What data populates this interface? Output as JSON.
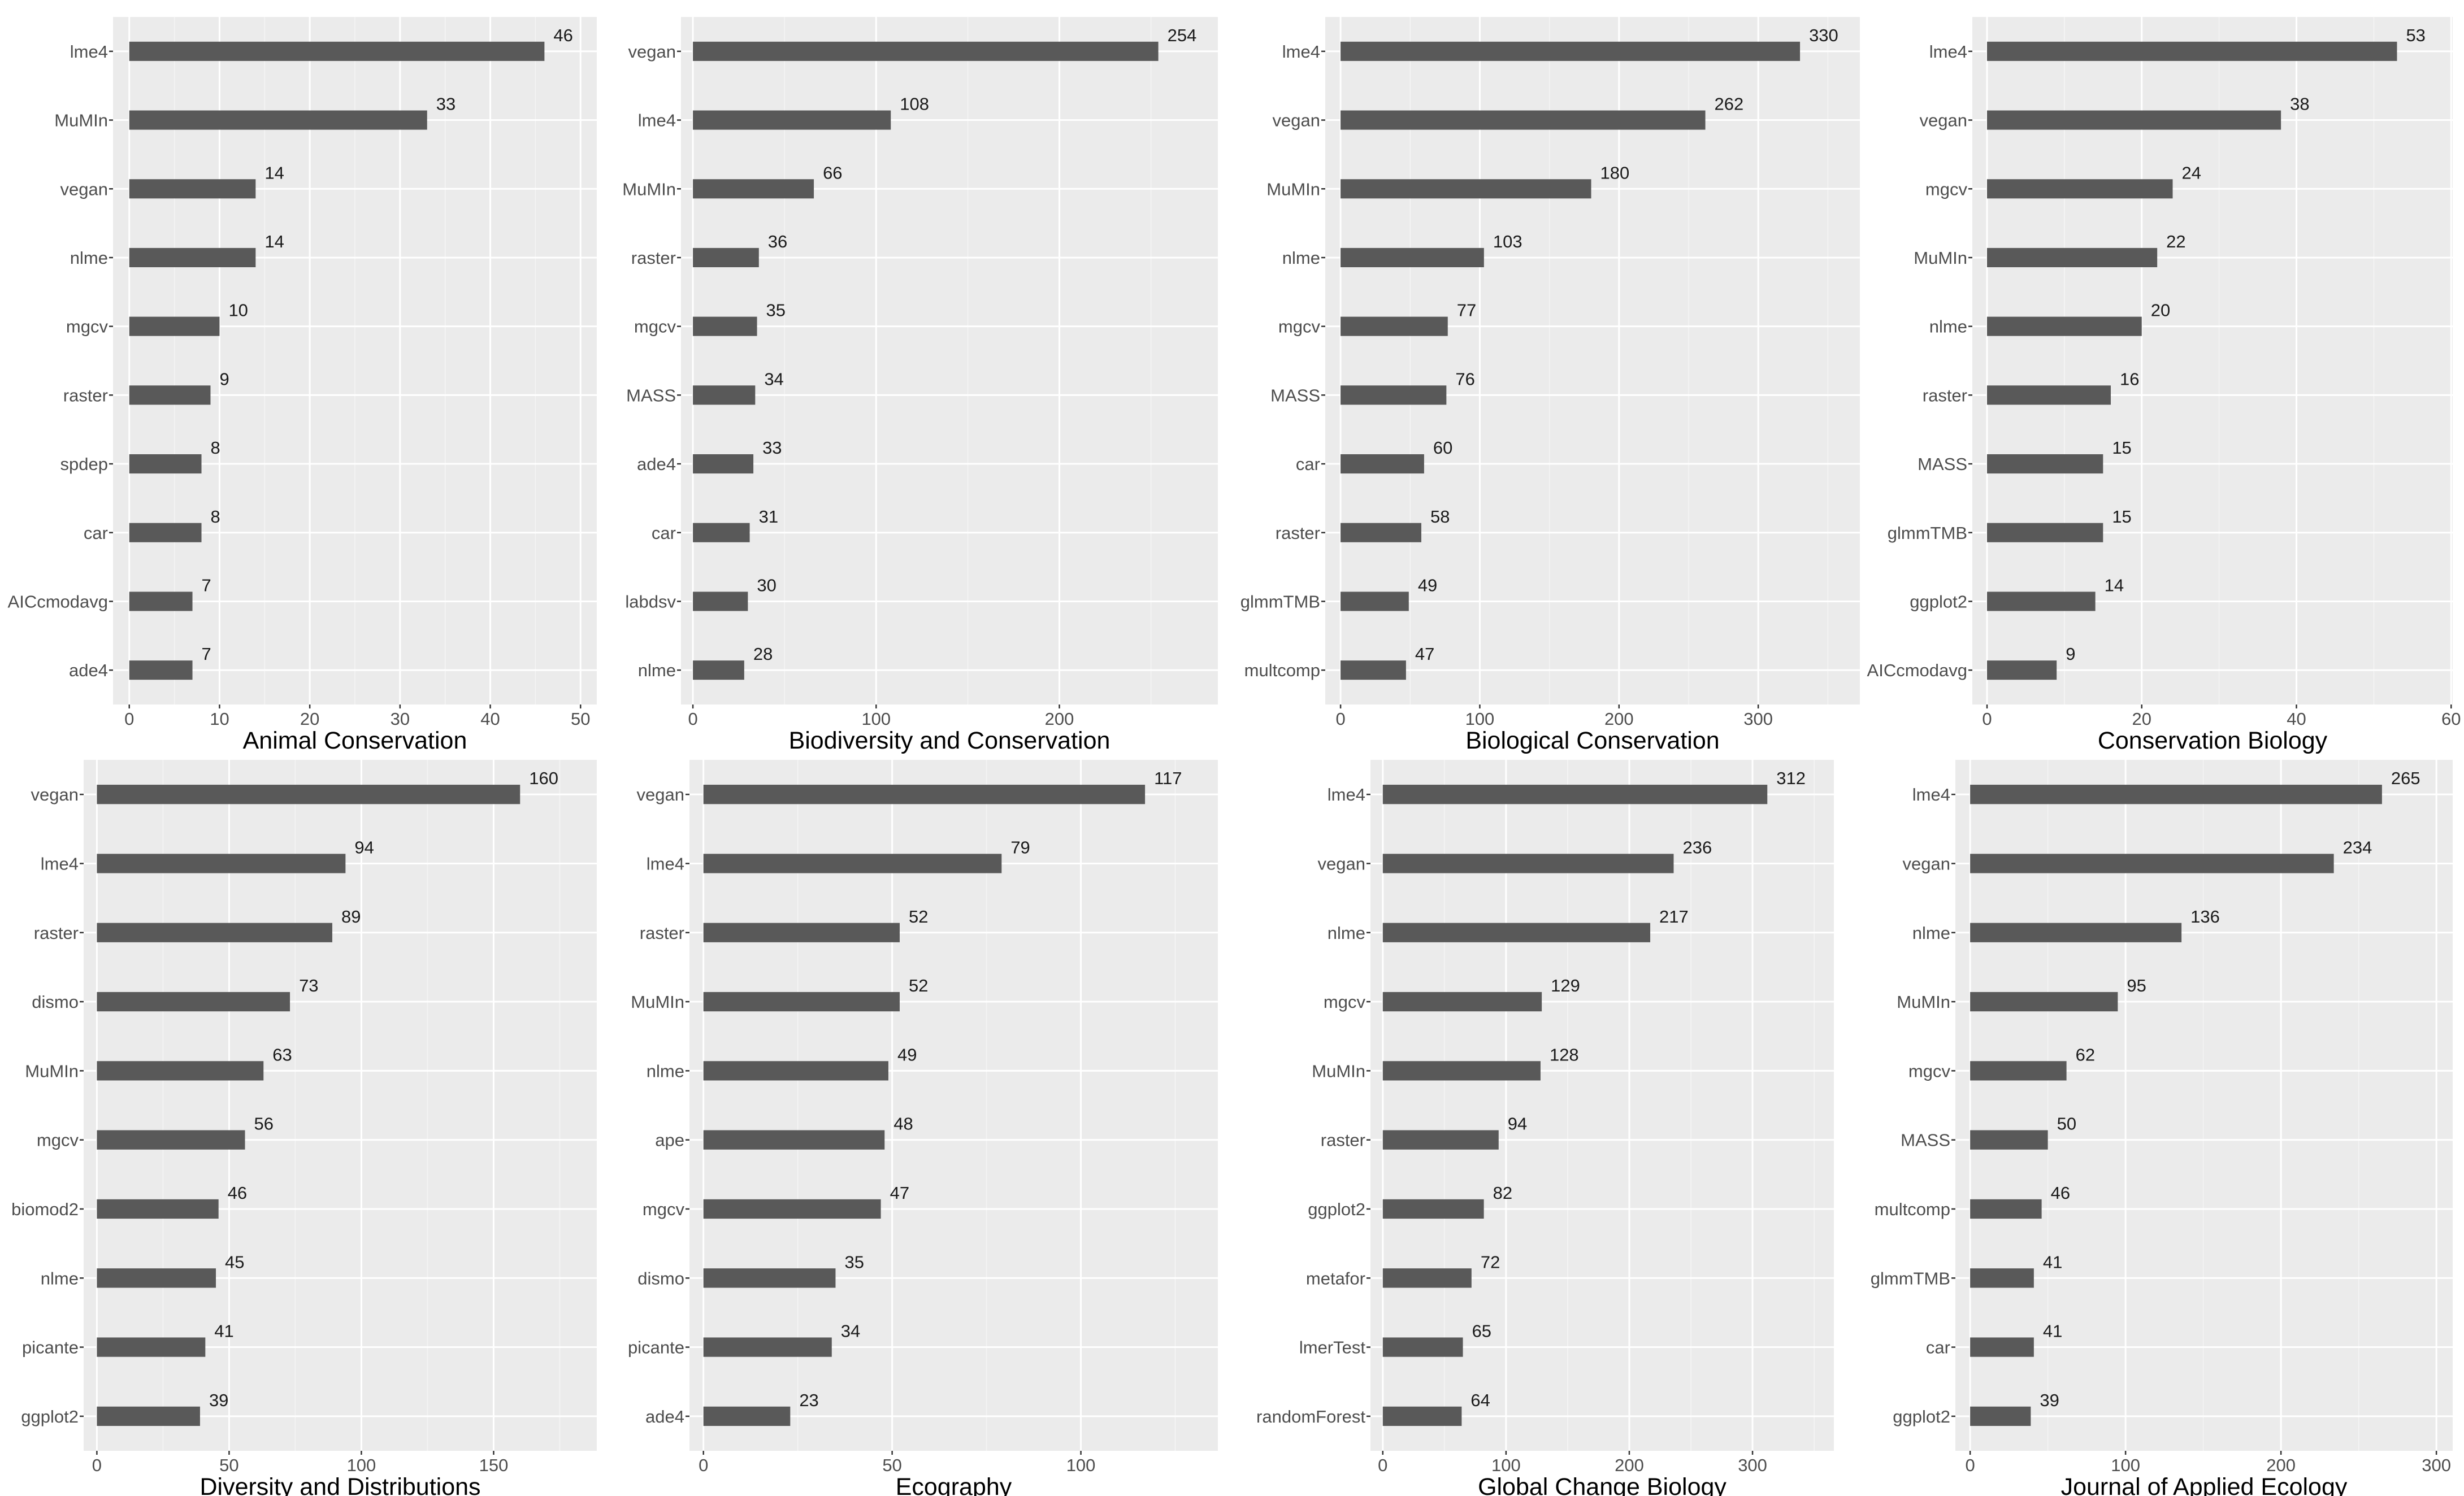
{
  "colors": {
    "bar": "#595959",
    "panel_background": "#ebebeb",
    "grid": "#ffffff"
  },
  "chart_data": [
    {
      "type": "bar",
      "orientation": "horizontal",
      "title": "Animal Conservation",
      "categories": [
        "lme4",
        "MuMIn",
        "vegan",
        "nlme",
        "mgcv",
        "raster",
        "spdep",
        "car",
        "AICcmodavg",
        "ade4"
      ],
      "values": [
        46,
        33,
        14,
        14,
        10,
        9,
        8,
        8,
        7,
        7
      ],
      "xlim": [
        -1.8,
        51.8
      ],
      "xticks": [
        0,
        10,
        20,
        30,
        40,
        50
      ]
    },
    {
      "type": "bar",
      "orientation": "horizontal",
      "title": "Biodiversity and Conservation",
      "categories": [
        "vegan",
        "lme4",
        "MuMIn",
        "raster",
        "mgcv",
        "MASS",
        "ade4",
        "car",
        "labdsv",
        "nlme"
      ],
      "values": [
        254,
        108,
        66,
        36,
        35,
        34,
        33,
        31,
        30,
        28
      ],
      "xlim": [
        -6.5,
        286.5
      ],
      "xticks": [
        0,
        100,
        200
      ]
    },
    {
      "type": "bar",
      "orientation": "horizontal",
      "title": "Biological Conservation",
      "categories": [
        "lme4",
        "vegan",
        "MuMIn",
        "nlme",
        "mgcv",
        "MASS",
        "car",
        "raster",
        "glmmTMB",
        "multcomp"
      ],
      "values": [
        330,
        262,
        180,
        103,
        77,
        76,
        60,
        58,
        49,
        47
      ],
      "xlim": [
        -11,
        373
      ],
      "xticks": [
        0,
        100,
        200,
        300
      ]
    },
    {
      "type": "bar",
      "orientation": "horizontal",
      "title": "Conservation Biology",
      "categories": [
        "lme4",
        "vegan",
        "mgcv",
        "MuMIn",
        "nlme",
        "raster",
        "MASS",
        "glmmTMB",
        "ggplot2",
        "AICcmodavg"
      ],
      "values": [
        53,
        38,
        24,
        22,
        20,
        16,
        15,
        15,
        14,
        9
      ],
      "xlim": [
        -1.9,
        60.2
      ],
      "xticks": [
        0,
        20,
        40,
        60
      ]
    },
    {
      "type": "bar",
      "orientation": "horizontal",
      "title": "Diversity and Distributions",
      "categories": [
        "vegan",
        "lme4",
        "raster",
        "dismo",
        "MuMIn",
        "mgcv",
        "biomod2",
        "nlme",
        "picante",
        "ggplot2"
      ],
      "values": [
        160,
        94,
        89,
        73,
        63,
        56,
        46,
        45,
        41,
        39
      ],
      "xlim": [
        -5,
        189
      ],
      "xticks": [
        0,
        50,
        100,
        150
      ]
    },
    {
      "type": "bar",
      "orientation": "horizontal",
      "title": "Ecography",
      "categories": [
        "vegan",
        "lme4",
        "raster",
        "MuMIn",
        "nlme",
        "ape",
        "mgcv",
        "dismo",
        "picante",
        "ade4"
      ],
      "values": [
        117,
        79,
        52,
        52,
        49,
        48,
        47,
        35,
        34,
        23
      ],
      "xlim": [
        -3.7,
        136.3
      ],
      "xticks": [
        0,
        50,
        100
      ]
    },
    {
      "type": "bar",
      "orientation": "horizontal",
      "title": "Global Change Biology",
      "categories": [
        "lme4",
        "vegan",
        "nlme",
        "mgcv",
        "MuMIn",
        "raster",
        "ggplot2",
        "metafor",
        "lmerTest",
        "randomForest"
      ],
      "values": [
        312,
        236,
        217,
        129,
        128,
        94,
        82,
        72,
        65,
        64
      ],
      "xlim": [
        -10,
        366
      ],
      "xticks": [
        0,
        100,
        200,
        300
      ]
    },
    {
      "type": "bar",
      "orientation": "horizontal",
      "title": "Journal of Applied Ecology",
      "categories": [
        "lme4",
        "vegan",
        "nlme",
        "MuMIn",
        "mgcv",
        "MASS",
        "multcomp",
        "glmmTMB",
        "car",
        "ggplot2"
      ],
      "values": [
        265,
        234,
        136,
        95,
        62,
        50,
        46,
        41,
        41,
        39
      ],
      "xlim": [
        -9.5,
        310.5
      ],
      "xticks": [
        0,
        100,
        200,
        300
      ]
    }
  ]
}
